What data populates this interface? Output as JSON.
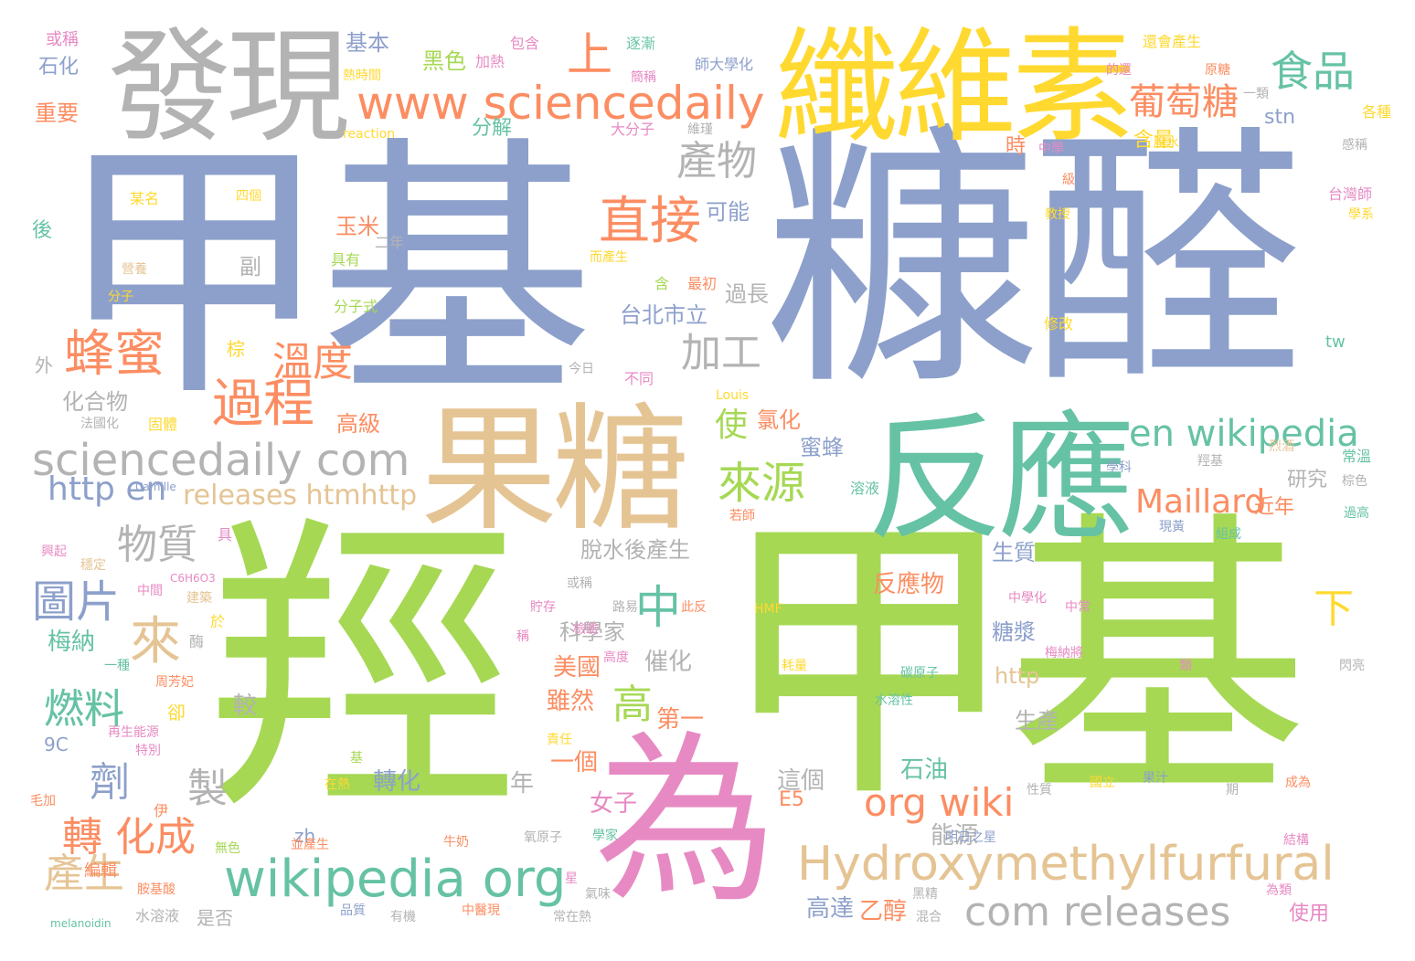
{
  "colors": {
    "blue": "#8da0cb",
    "green": "#a6d854",
    "teal": "#66c2a5",
    "orange": "#fc8d62",
    "pink": "#e78ac3",
    "yellow": "#ffd92f",
    "tan": "#e5c494",
    "gray": "#b3b3b3"
  },
  "words": [
    {
      "text": "甲基"
    },
    {
      "text": "糠醛"
    },
    {
      "text": "羥"
    },
    {
      "text": "甲基"
    },
    {
      "text": "纖維素"
    },
    {
      "text": "發現"
    },
    {
      "text": "果糖"
    },
    {
      "text": "反應"
    },
    {
      "text": "為"
    },
    {
      "text": "www sciencedaily"
    },
    {
      "text": "食品"
    },
    {
      "text": "上"
    },
    {
      "text": "葡萄糖"
    },
    {
      "text": "直接"
    },
    {
      "text": "產物"
    },
    {
      "text": "蜂蜜"
    },
    {
      "text": "溫度"
    },
    {
      "text": "過程"
    },
    {
      "text": "加工"
    },
    {
      "text": "sciencedaily com"
    },
    {
      "text": "http en"
    },
    {
      "text": "releases htmhttp"
    },
    {
      "text": "en wikipedia"
    },
    {
      "text": "來源"
    },
    {
      "text": "Maillard"
    },
    {
      "text": "物質"
    },
    {
      "text": "圖片"
    },
    {
      "text": "中"
    },
    {
      "text": "來"
    },
    {
      "text": "燃料"
    },
    {
      "text": "劑"
    },
    {
      "text": "製"
    },
    {
      "text": "轉 化成"
    },
    {
      "text": "產生"
    },
    {
      "text": "wikipedia org"
    },
    {
      "text": "org wiki"
    },
    {
      "text": "Hydroxymethylfurfural"
    },
    {
      "text": "com releases"
    },
    {
      "text": "高"
    },
    {
      "text": "下"
    },
    {
      "text": "脫水後產生"
    },
    {
      "text": "反應物"
    },
    {
      "text": "使"
    },
    {
      "text": "台北市立"
    },
    {
      "text": "過長"
    },
    {
      "text": "可能"
    },
    {
      "text": "玉米"
    },
    {
      "text": "副"
    },
    {
      "text": "氯化"
    },
    {
      "text": "蜜蜂"
    },
    {
      "text": "研究"
    },
    {
      "text": "近年"
    },
    {
      "text": "生質"
    },
    {
      "text": "糖漿"
    },
    {
      "text": "催化"
    },
    {
      "text": "美國"
    },
    {
      "text": "雖然"
    },
    {
      "text": "第一"
    },
    {
      "text": "一個"
    },
    {
      "text": "轉化"
    },
    {
      "text": "石油"
    },
    {
      "text": "這個"
    },
    {
      "text": "能源"
    },
    {
      "text": "高達"
    },
    {
      "text": "乙醇"
    },
    {
      "text": "使用"
    },
    {
      "text": "生產"
    },
    {
      "text": "http"
    },
    {
      "text": "科學家"
    },
    {
      "text": "女子"
    },
    {
      "text": "年"
    },
    {
      "text": "較"
    },
    {
      "text": "燃料"
    },
    {
      "text": "梅納"
    },
    {
      "text": "化合物"
    },
    {
      "text": "高級"
    },
    {
      "text": "石化"
    },
    {
      "text": "重要"
    },
    {
      "text": "基本"
    },
    {
      "text": "黑色"
    },
    {
      "text": "含量"
    },
    {
      "text": "分解"
    },
    {
      "text": "stn"
    },
    {
      "text": "時"
    },
    {
      "text": "或稱"
    },
    {
      "text": "熱時間"
    },
    {
      "text": "加熱"
    },
    {
      "text": "包含"
    },
    {
      "text": "逐漸"
    },
    {
      "text": "簡稱"
    },
    {
      "text": "師大學化"
    },
    {
      "text": "還會產生"
    },
    {
      "text": "的還"
    },
    {
      "text": "原糖"
    },
    {
      "text": "一類"
    },
    {
      "text": "維瑾"
    },
    {
      "text": "大分子"
    },
    {
      "text": "reaction"
    },
    {
      "text": "脫水"
    },
    {
      "text": "中學"
    },
    {
      "text": "各種"
    },
    {
      "text": "感稱"
    },
    {
      "text": "級"
    },
    {
      "text": "台灣師"
    },
    {
      "text": "教授"
    },
    {
      "text": "學系"
    },
    {
      "text": "某名"
    },
    {
      "text": "四個"
    },
    {
      "text": "後"
    },
    {
      "text": "二年"
    },
    {
      "text": "具有"
    },
    {
      "text": "而產生"
    },
    {
      "text": "營養"
    },
    {
      "text": "分子"
    },
    {
      "text": "含"
    },
    {
      "text": "最初"
    },
    {
      "text": "分子式"
    },
    {
      "text": "修改"
    },
    {
      "text": "tw"
    },
    {
      "text": "棕"
    },
    {
      "text": "外"
    },
    {
      "text": "今日"
    },
    {
      "text": "不同"
    },
    {
      "text": "Louis"
    },
    {
      "text": "法國化"
    },
    {
      "text": "固體"
    },
    {
      "text": "學科"
    },
    {
      "text": "烈酒"
    },
    {
      "text": "常溫"
    },
    {
      "text": "羥基"
    },
    {
      "text": "棕色"
    },
    {
      "text": "Camille"
    },
    {
      "text": "溶液"
    },
    {
      "text": "若師"
    },
    {
      "text": "現黃"
    },
    {
      "text": "組成"
    },
    {
      "text": "過高"
    },
    {
      "text": "興起"
    },
    {
      "text": "具"
    },
    {
      "text": "穩定"
    },
    {
      "text": "C6H6O3"
    },
    {
      "text": "中間"
    },
    {
      "text": "建築"
    },
    {
      "text": "貯存"
    },
    {
      "text": "路易"
    },
    {
      "text": "此反"
    },
    {
      "text": "或稱"
    },
    {
      "text": "檢驗"
    },
    {
      "text": "HMF"
    },
    {
      "text": "中學化"
    },
    {
      "text": "中常"
    },
    {
      "text": "梅納將"
    },
    {
      "text": "於"
    },
    {
      "text": "酶"
    },
    {
      "text": "一種"
    },
    {
      "text": "周芳妃"
    },
    {
      "text": "稱"
    },
    {
      "text": "高度"
    },
    {
      "text": "耗量"
    },
    {
      "text": "碳原子"
    },
    {
      "text": "類"
    },
    {
      "text": "閃亮"
    },
    {
      "text": "水溶性"
    },
    {
      "text": "卻"
    },
    {
      "text": "再生能源"
    },
    {
      "text": "特別"
    },
    {
      "text": "9C"
    },
    {
      "text": "責任"
    },
    {
      "text": "基"
    },
    {
      "text": "在熱"
    },
    {
      "text": "性質"
    },
    {
      "text": "國立"
    },
    {
      "text": "果汁"
    },
    {
      "text": "成為"
    },
    {
      "text": "期"
    },
    {
      "text": "毛加"
    },
    {
      "text": "伊"
    },
    {
      "text": "E5"
    },
    {
      "text": "zh"
    },
    {
      "text": "並產生"
    },
    {
      "text": "牛奶"
    },
    {
      "text": "學家"
    },
    {
      "text": "氧原子"
    },
    {
      "text": "明日之星"
    },
    {
      "text": "結構"
    },
    {
      "text": "無色"
    },
    {
      "text": "編輯"
    },
    {
      "text": "胺基酸"
    },
    {
      "text": "星"
    },
    {
      "text": "氣味"
    },
    {
      "text": "黑精"
    },
    {
      "text": "為類"
    },
    {
      "text": "水溶液"
    },
    {
      "text": "是否"
    },
    {
      "text": "品質"
    },
    {
      "text": "有機"
    },
    {
      "text": "中醫現"
    },
    {
      "text": "常在熱"
    },
    {
      "text": "混合"
    },
    {
      "text": "melanoidin"
    }
  ]
}
